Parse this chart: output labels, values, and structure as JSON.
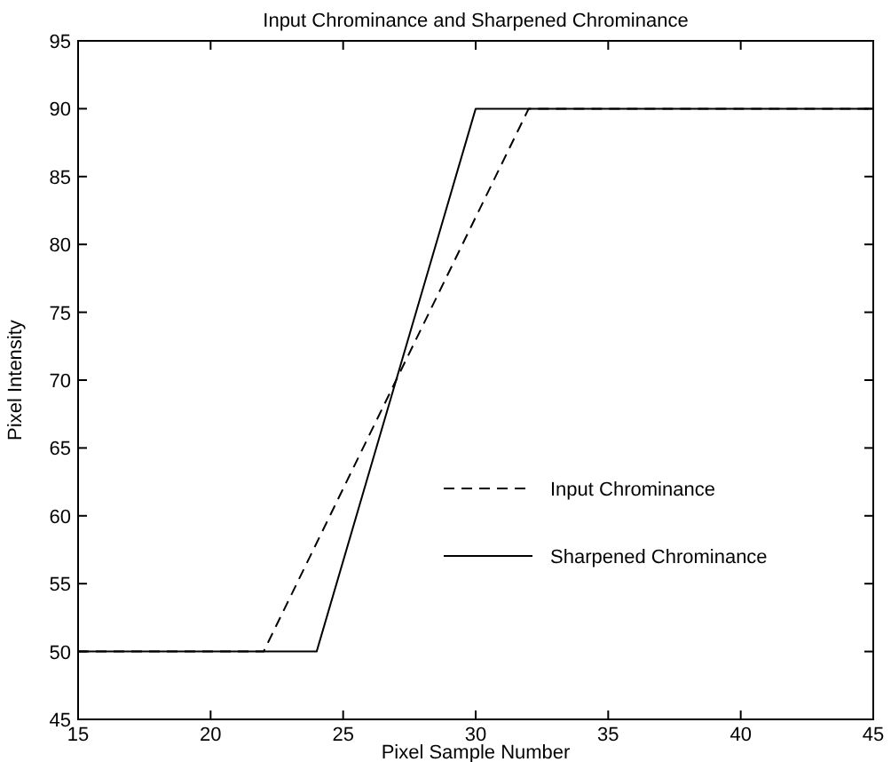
{
  "chart_data": {
    "type": "line",
    "title": "Input Chrominance and Sharpened Chrominance",
    "xlabel": "Pixel Sample Number",
    "ylabel": "Pixel Intensity",
    "xlim": [
      15,
      45
    ],
    "xticks": [
      15,
      20,
      25,
      30,
      35,
      40,
      45
    ],
    "ylim": [
      45,
      95
    ],
    "yticks": [
      45,
      50,
      55,
      60,
      65,
      70,
      75,
      80,
      85,
      90,
      95
    ],
    "legend": "right",
    "grid": false,
    "marker": "none",
    "series": [
      {
        "name": "Input Chrominance",
        "color": "#000000",
        "line_style": "dashed",
        "x": [
          15,
          22,
          32,
          45
        ],
        "values": [
          50,
          50,
          90,
          90
        ]
      },
      {
        "name": "Sharpened Chrominance",
        "color": "#000000",
        "line_style": "solid",
        "x": [
          15,
          24,
          30,
          45
        ],
        "values": [
          50,
          50,
          90,
          90
        ]
      }
    ]
  }
}
